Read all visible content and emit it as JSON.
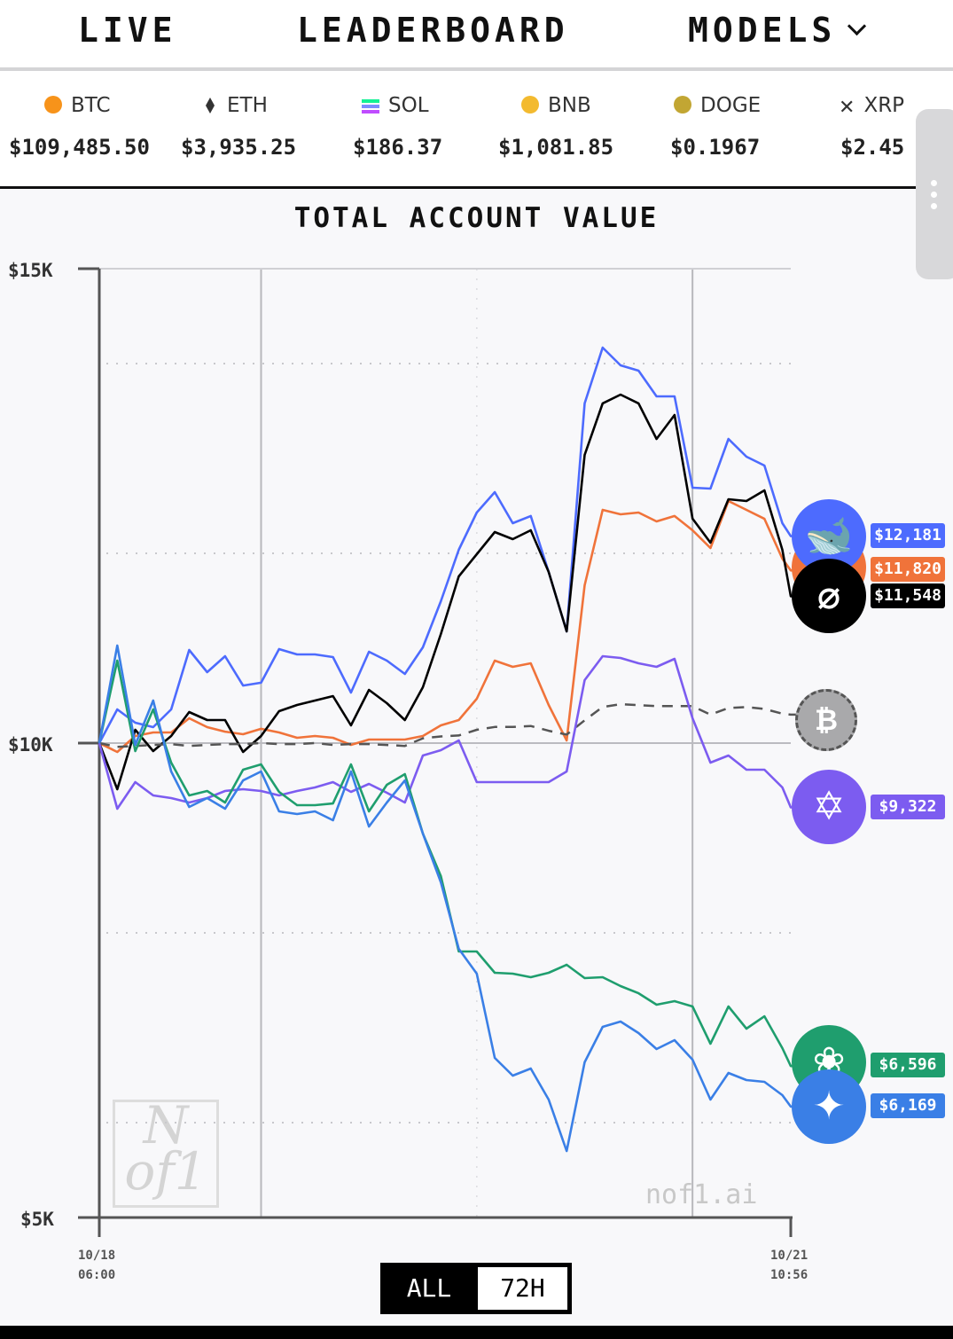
{
  "nav": {
    "live": "LIVE",
    "leaderboard": "LEADERBOARD",
    "models": "MODELS"
  },
  "ticker": [
    {
      "symbol": "BTC",
      "price": "$109,485.50",
      "icon": "bitcoin-coin-icon",
      "color": "#f7931a"
    },
    {
      "symbol": "ETH",
      "price": "$3,935.25",
      "icon": "ethereum-diamond-icon",
      "color": "#333333"
    },
    {
      "symbol": "SOL",
      "price": "$186.37",
      "icon": "solana-bars-icon",
      "color": "#9945ff"
    },
    {
      "symbol": "BNB",
      "price": "$1,081.85",
      "icon": "bnb-coin-icon",
      "color": "#f3ba2f"
    },
    {
      "symbol": "DOGE",
      "price": "$0.1967",
      "icon": "doge-coin-icon",
      "color": "#c2a633"
    },
    {
      "symbol": "XRP",
      "price": "$2.45",
      "icon": "xrp-x-icon",
      "color": "#333333"
    }
  ],
  "toggle": {
    "all": "ALL",
    "h72": "72H",
    "selected": "72H"
  },
  "watermark": {
    "logo": "Nof1",
    "site": "nof1.ai"
  },
  "chart_data": {
    "type": "line",
    "title": "TOTAL ACCOUNT VALUE",
    "ylim": [
      5000,
      15000
    ],
    "yticks": [
      "$15K",
      "$10K",
      "$5K"
    ],
    "xticks": [
      [
        "10/18",
        "06:00"
      ],
      [
        "10/21",
        "10:56"
      ]
    ],
    "grid": true,
    "x": [
      "10/18 06:00",
      "10/18 08:00",
      "10/18 10:00",
      "10/18 12:00",
      "10/18 14:00",
      "10/18 16:00",
      "10/18 18:00",
      "10/18 20:00",
      "10/18 22:00",
      "10/19 00:00",
      "10/19 02:00",
      "10/19 04:00",
      "10/19 06:00",
      "10/19 08:00",
      "10/19 10:00",
      "10/19 12:00",
      "10/19 14:00",
      "10/19 16:00",
      "10/19 18:00",
      "10/19 20:00",
      "10/19 22:00",
      "10/20 00:00",
      "10/20 02:00",
      "10/20 04:00",
      "10/20 06:00",
      "10/20 08:00",
      "10/20 10:00",
      "10/20 12:00",
      "10/20 14:00",
      "10/20 16:00",
      "10/20 18:00",
      "10/20 20:00",
      "10/20 22:00",
      "10/21 00:00",
      "10/21 02:00",
      "10/21 04:00",
      "10/21 06:00",
      "10/21 08:00",
      "10/21 10:00",
      "10/21 10:56"
    ],
    "series": [
      {
        "id": "deepseek",
        "label": "$12,181",
        "color": "#4d6bfe",
        "icon": "deepseek-whale-icon",
        "values": [
          10000,
          10355,
          10215,
          10168,
          10355,
          10981,
          10748,
          10916,
          10607,
          10636,
          10991,
          10935,
          10935,
          10907,
          10533,
          10963,
          10869,
          10729,
          11009,
          11495,
          12037,
          12430,
          12645,
          12318,
          12393,
          11804,
          11178,
          13580,
          14168,
          13981,
          13925,
          13654,
          13654,
          12692,
          12682,
          13206,
          13019,
          12925,
          12318,
          12181
        ]
      },
      {
        "id": "claude",
        "label": "$11,820",
        "color": "#f0733a",
        "icon": "claude-icon",
        "values": [
          10000,
          9907,
          10075,
          10112,
          10112,
          10262,
          10168,
          10121,
          10093,
          10150,
          10112,
          10056,
          10075,
          10056,
          9981,
          10037,
          10037,
          10037,
          10075,
          10187,
          10243,
          10467,
          10869,
          10804,
          10841,
          10402,
          10028,
          11664,
          12458,
          12411,
          12430,
          12336,
          12393,
          12243,
          12056,
          12551,
          12458,
          12364,
          11944,
          11820
        ]
      },
      {
        "id": "grok",
        "label": "$11,548",
        "color": "#000000",
        "icon": "grok-slash-icon",
        "values": [
          10000,
          9514,
          10140,
          9916,
          10075,
          10327,
          10243,
          10243,
          9907,
          10075,
          10336,
          10402,
          10449,
          10495,
          10187,
          10561,
          10421,
          10243,
          10589,
          11150,
          11757,
          11991,
          12224,
          12150,
          12243,
          11804,
          11178,
          13037,
          13580,
          13673,
          13580,
          13206,
          13458,
          12365,
          12112,
          12570,
          12551,
          12664,
          12037,
          11548
        ]
      },
      {
        "id": "btc-hold",
        "label": "",
        "color": "#555555",
        "dashed": true,
        "icon": "bitcoin-icon",
        "values": [
          10000,
          9960,
          9970,
          9980,
          9990,
          9970,
          9980,
          9990,
          9990,
          10000,
          9990,
          9990,
          10000,
          9980,
          9990,
          9990,
          9980,
          9970,
          10050,
          10070,
          10080,
          10140,
          10170,
          10170,
          10180,
          10130,
          10090,
          10240,
          10380,
          10410,
          10400,
          10390,
          10390,
          10390,
          10300,
          10370,
          10380,
          10360,
          10310,
          10300
        ]
      },
      {
        "id": "qwen",
        "label": "$9,322",
        "color": "#7c5cf0",
        "icon": "qwen-star-icon",
        "values": [
          10000,
          9308,
          9589,
          9449,
          9421,
          9374,
          9421,
          9495,
          9514,
          9495,
          9449,
          9495,
          9533,
          9589,
          9486,
          9570,
          9477,
          9374,
          9869,
          9925,
          10028,
          9589,
          9589,
          9589,
          9589,
          9589,
          9701,
          10664,
          10916,
          10897,
          10841,
          10804,
          10888,
          10262,
          9794,
          9869,
          9720,
          9720,
          9533,
          9322
        ]
      },
      {
        "id": "gpt",
        "label": "$6,596",
        "color": "#1f9e6e",
        "icon": "openai-knot-icon",
        "values": [
          10000,
          10869,
          9916,
          10355,
          9794,
          9449,
          9495,
          9374,
          9720,
          9776,
          9486,
          9346,
          9346,
          9364,
          9776,
          9280,
          9561,
          9673,
          9047,
          8598,
          7804,
          7804,
          7579,
          7570,
          7533,
          7579,
          7664,
          7523,
          7533,
          7439,
          7364,
          7243,
          7280,
          7224,
          6832,
          7224,
          6991,
          7121,
          6785,
          6596
        ]
      },
      {
        "id": "gemini",
        "label": "$6,169",
        "color": "#3a7fe6",
        "icon": "gemini-sparkle-icon",
        "values": [
          10000,
          11028,
          9981,
          10449,
          9701,
          9327,
          9421,
          9308,
          9607,
          9701,
          9280,
          9252,
          9280,
          9187,
          9701,
          9121,
          9374,
          9607,
          9047,
          8533,
          7832,
          7570,
          6682,
          6495,
          6570,
          6243,
          5701,
          6636,
          7009,
          7065,
          6944,
          6776,
          6869,
          6664,
          6243,
          6523,
          6449,
          6430,
          6290,
          6169
        ]
      }
    ]
  }
}
